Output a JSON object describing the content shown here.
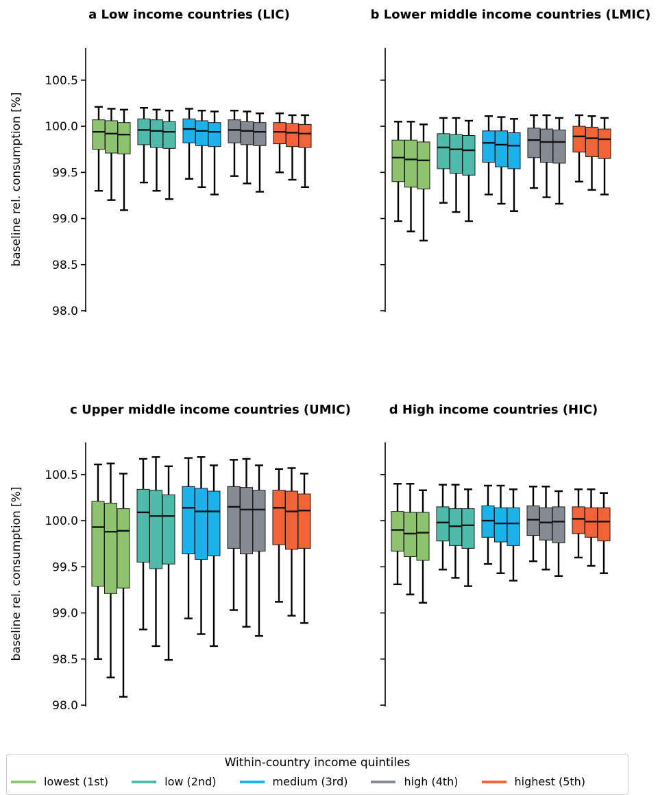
{
  "figure": {
    "ylabel": "baseline rel. consumption [%]",
    "legend_title": "Within-country income quintiles",
    "legend": [
      {
        "label": "lowest (1st)",
        "color": "#8dc26f"
      },
      {
        "label": "low (2nd)",
        "color": "#4fbbab"
      },
      {
        "label": "medium (3rd)",
        "color": "#1cb2ec"
      },
      {
        "label": "high (4th)",
        "color": "#868b93"
      },
      {
        "label": "highest (5th)",
        "color": "#f26438"
      }
    ]
  },
  "chart_data": [
    {
      "type": "box",
      "title": "a Low income countries (LIC)",
      "ylim": [
        98.0,
        100.8
      ],
      "yticks": [
        "98.0",
        "98.5",
        "99.0",
        "99.5",
        "100.0",
        "100.5"
      ],
      "show_ylabel": true,
      "show_ticklabels": true,
      "groups": [
        {
          "name": "lowest (1st)",
          "boxes": [
            {
              "whislo": 99.3,
              "q1": 99.75,
              "med": 99.94,
              "q3": 100.07,
              "whishi": 100.21
            },
            {
              "whislo": 99.2,
              "q1": 99.71,
              "med": 99.92,
              "q3": 100.06,
              "whishi": 100.19
            },
            {
              "whislo": 99.09,
              "q1": 99.7,
              "med": 99.91,
              "q3": 100.04,
              "whishi": 100.18
            }
          ]
        },
        {
          "name": "low (2nd)",
          "boxes": [
            {
              "whislo": 99.39,
              "q1": 99.8,
              "med": 99.96,
              "q3": 100.08,
              "whishi": 100.2
            },
            {
              "whislo": 99.3,
              "q1": 99.77,
              "med": 99.95,
              "q3": 100.07,
              "whishi": 100.18
            },
            {
              "whislo": 99.21,
              "q1": 99.76,
              "med": 99.94,
              "q3": 100.05,
              "whishi": 100.17
            }
          ]
        },
        {
          "name": "medium (3rd)",
          "boxes": [
            {
              "whislo": 99.43,
              "q1": 99.82,
              "med": 99.97,
              "q3": 100.08,
              "whishi": 100.19
            },
            {
              "whislo": 99.34,
              "q1": 99.79,
              "med": 99.95,
              "q3": 100.06,
              "whishi": 100.17
            },
            {
              "whislo": 99.26,
              "q1": 99.78,
              "med": 99.94,
              "q3": 100.04,
              "whishi": 100.16
            }
          ]
        },
        {
          "name": "high (4th)",
          "boxes": [
            {
              "whislo": 99.46,
              "q1": 99.82,
              "med": 99.96,
              "q3": 100.07,
              "whishi": 100.17
            },
            {
              "whislo": 99.38,
              "q1": 99.8,
              "med": 99.95,
              "q3": 100.05,
              "whishi": 100.16
            },
            {
              "whislo": 99.29,
              "q1": 99.79,
              "med": 99.94,
              "q3": 100.04,
              "whishi": 100.14
            }
          ]
        },
        {
          "name": "highest (5th)",
          "boxes": [
            {
              "whislo": 99.5,
              "q1": 99.81,
              "med": 99.94,
              "q3": 100.04,
              "whishi": 100.14
            },
            {
              "whislo": 99.42,
              "q1": 99.78,
              "med": 99.93,
              "q3": 100.03,
              "whishi": 100.12
            },
            {
              "whislo": 99.34,
              "q1": 99.77,
              "med": 99.92,
              "q3": 100.02,
              "whishi": 100.12
            }
          ]
        }
      ]
    },
    {
      "type": "box",
      "title": "b Lower middle income countries (LMIC)",
      "ylim": [
        98.0,
        100.8
      ],
      "yticks": [
        "98.0",
        "98.5",
        "99.0",
        "99.5",
        "100.0",
        "100.5"
      ],
      "show_ylabel": false,
      "show_ticklabels": false,
      "groups": [
        {
          "name": "lowest (1st)",
          "boxes": [
            {
              "whislo": 98.97,
              "q1": 99.4,
              "med": 99.66,
              "q3": 99.85,
              "whishi": 100.05
            },
            {
              "whislo": 98.86,
              "q1": 99.34,
              "med": 99.64,
              "q3": 99.85,
              "whishi": 100.05
            },
            {
              "whislo": 98.76,
              "q1": 99.32,
              "med": 99.63,
              "q3": 99.83,
              "whishi": 100.02
            }
          ]
        },
        {
          "name": "low (2nd)",
          "boxes": [
            {
              "whislo": 99.17,
              "q1": 99.54,
              "med": 99.77,
              "q3": 99.92,
              "whishi": 100.09
            },
            {
              "whislo": 99.07,
              "q1": 99.49,
              "med": 99.75,
              "q3": 99.91,
              "whishi": 100.09
            },
            {
              "whislo": 98.97,
              "q1": 99.47,
              "med": 99.74,
              "q3": 99.9,
              "whishi": 100.06
            }
          ]
        },
        {
          "name": "medium (3rd)",
          "boxes": [
            {
              "whislo": 99.26,
              "q1": 99.61,
              "med": 99.82,
              "q3": 99.95,
              "whishi": 100.11
            },
            {
              "whislo": 99.16,
              "q1": 99.56,
              "med": 99.8,
              "q3": 99.95,
              "whishi": 100.1
            },
            {
              "whislo": 99.08,
              "q1": 99.54,
              "med": 99.79,
              "q3": 99.93,
              "whishi": 100.08
            }
          ]
        },
        {
          "name": "high (4th)",
          "boxes": [
            {
              "whislo": 99.33,
              "q1": 99.66,
              "med": 99.85,
              "q3": 99.98,
              "whishi": 100.12
            },
            {
              "whislo": 99.23,
              "q1": 99.61,
              "med": 99.83,
              "q3": 99.97,
              "whishi": 100.12
            },
            {
              "whislo": 99.16,
              "q1": 99.6,
              "med": 99.83,
              "q3": 99.96,
              "whishi": 100.09
            }
          ]
        },
        {
          "name": "highest (5th)",
          "boxes": [
            {
              "whislo": 99.4,
              "q1": 99.72,
              "med": 99.89,
              "q3": 100.0,
              "whishi": 100.12
            },
            {
              "whislo": 99.31,
              "q1": 99.67,
              "med": 99.87,
              "q3": 99.99,
              "whishi": 100.11
            },
            {
              "whislo": 99.26,
              "q1": 99.65,
              "med": 99.86,
              "q3": 99.97,
              "whishi": 100.09
            }
          ]
        }
      ]
    },
    {
      "type": "box",
      "title": "c Upper middle income countries (UMIC)",
      "ylim": [
        98.0,
        100.8
      ],
      "yticks": [
        "98.0",
        "98.5",
        "99.0",
        "99.5",
        "100.0",
        "100.5"
      ],
      "show_ylabel": true,
      "show_ticklabels": true,
      "groups": [
        {
          "name": "lowest (1st)",
          "boxes": [
            {
              "whislo": 98.5,
              "q1": 99.29,
              "med": 99.93,
              "q3": 100.21,
              "whishi": 100.61
            },
            {
              "whislo": 98.3,
              "q1": 99.21,
              "med": 99.88,
              "q3": 100.19,
              "whishi": 100.62
            },
            {
              "whislo": 98.09,
              "q1": 99.27,
              "med": 99.89,
              "q3": 100.13,
              "whishi": 100.51
            }
          ]
        },
        {
          "name": "low (2nd)",
          "boxes": [
            {
              "whislo": 98.82,
              "q1": 99.55,
              "med": 100.09,
              "q3": 100.34,
              "whishi": 100.67
            },
            {
              "whislo": 98.64,
              "q1": 99.48,
              "med": 100.05,
              "q3": 100.33,
              "whishi": 100.69
            },
            {
              "whislo": 98.49,
              "q1": 99.53,
              "med": 100.05,
              "q3": 100.28,
              "whishi": 100.59
            }
          ]
        },
        {
          "name": "medium (3rd)",
          "boxes": [
            {
              "whislo": 98.94,
              "q1": 99.64,
              "med": 100.14,
              "q3": 100.37,
              "whishi": 100.68
            },
            {
              "whislo": 98.77,
              "q1": 99.58,
              "med": 100.1,
              "q3": 100.35,
              "whishi": 100.69
            },
            {
              "whislo": 98.64,
              "q1": 99.62,
              "med": 100.1,
              "q3": 100.32,
              "whishi": 100.6
            }
          ]
        },
        {
          "name": "high (4th)",
          "boxes": [
            {
              "whislo": 99.03,
              "q1": 99.7,
              "med": 100.15,
              "q3": 100.37,
              "whishi": 100.66
            },
            {
              "whislo": 98.85,
              "q1": 99.64,
              "med": 100.12,
              "q3": 100.36,
              "whishi": 100.67
            },
            {
              "whislo": 98.75,
              "q1": 99.67,
              "med": 100.12,
              "q3": 100.33,
              "whishi": 100.6
            }
          ]
        },
        {
          "name": "highest (5th)",
          "boxes": [
            {
              "whislo": 99.12,
              "q1": 99.74,
              "med": 100.14,
              "q3": 100.33,
              "whishi": 100.56
            },
            {
              "whislo": 98.97,
              "q1": 99.69,
              "med": 100.1,
              "q3": 100.32,
              "whishi": 100.57
            },
            {
              "whislo": 98.89,
              "q1": 99.7,
              "med": 100.11,
              "q3": 100.29,
              "whishi": 100.51
            }
          ]
        }
      ]
    },
    {
      "type": "box",
      "title": "d High income countries (HIC)",
      "ylim": [
        98.0,
        100.8
      ],
      "yticks": [
        "98.0",
        "98.5",
        "99.0",
        "99.5",
        "100.0",
        "100.5"
      ],
      "show_ylabel": false,
      "show_ticklabels": false,
      "groups": [
        {
          "name": "lowest (1st)",
          "boxes": [
            {
              "whislo": 99.31,
              "q1": 99.67,
              "med": 99.9,
              "q3": 100.1,
              "whishi": 100.4
            },
            {
              "whislo": 99.2,
              "q1": 99.61,
              "med": 99.86,
              "q3": 100.09,
              "whishi": 100.4
            },
            {
              "whislo": 99.11,
              "q1": 99.57,
              "med": 99.87,
              "q3": 100.09,
              "whishi": 100.33
            }
          ]
        },
        {
          "name": "low (2nd)",
          "boxes": [
            {
              "whislo": 99.47,
              "q1": 99.78,
              "med": 99.98,
              "q3": 100.15,
              "whishi": 100.39
            },
            {
              "whislo": 99.38,
              "q1": 99.73,
              "med": 99.94,
              "q3": 100.13,
              "whishi": 100.39
            },
            {
              "whislo": 99.29,
              "q1": 99.7,
              "med": 99.95,
              "q3": 100.13,
              "whishi": 100.34
            }
          ]
        },
        {
          "name": "medium (3rd)",
          "boxes": [
            {
              "whislo": 99.53,
              "q1": 99.82,
              "med": 100.0,
              "q3": 100.16,
              "whishi": 100.38
            },
            {
              "whislo": 99.43,
              "q1": 99.77,
              "med": 99.97,
              "q3": 100.14,
              "whishi": 100.38
            },
            {
              "whislo": 99.35,
              "q1": 99.73,
              "med": 99.97,
              "q3": 100.14,
              "whishi": 100.34
            }
          ]
        },
        {
          "name": "high (4th)",
          "boxes": [
            {
              "whislo": 99.56,
              "q1": 99.84,
              "med": 100.01,
              "q3": 100.16,
              "whishi": 100.37
            },
            {
              "whislo": 99.47,
              "q1": 99.79,
              "med": 99.98,
              "q3": 100.14,
              "whishi": 100.37
            },
            {
              "whislo": 99.4,
              "q1": 99.76,
              "med": 99.99,
              "q3": 100.15,
              "whishi": 100.32
            }
          ]
        },
        {
          "name": "highest (5th)",
          "boxes": [
            {
              "whislo": 99.6,
              "q1": 99.86,
              "med": 100.02,
              "q3": 100.15,
              "whishi": 100.34
            },
            {
              "whislo": 99.51,
              "q1": 99.82,
              "med": 99.99,
              "q3": 100.14,
              "whishi": 100.34
            },
            {
              "whislo": 99.43,
              "q1": 99.78,
              "med": 99.99,
              "q3": 100.14,
              "whishi": 100.3
            }
          ]
        }
      ]
    }
  ]
}
